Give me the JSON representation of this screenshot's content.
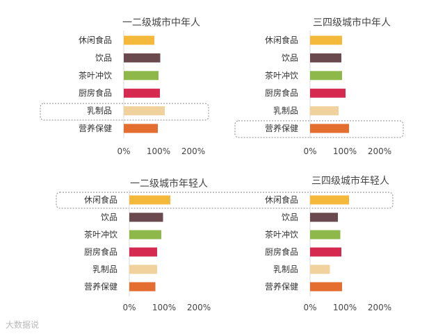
{
  "chart_data": [
    {
      "type": "bar",
      "orientation": "horizontal",
      "title": "一二级城市中年人",
      "categories": [
        "休闲食品",
        "饮品",
        "茶叶冲饮",
        "厨房食品",
        "乳制品",
        "营养保健"
      ],
      "values": [
        88,
        105,
        100,
        104,
        118,
        98
      ],
      "colors": [
        "#F4B93A",
        "#6B4A4F",
        "#8FB84A",
        "#D6294F",
        "#F2D29C",
        "#E36E2F"
      ],
      "x_ticks": [
        "0%",
        "100%",
        "200%"
      ],
      "xlim": [
        0,
        200
      ],
      "highlighted_category": "乳制品"
    },
    {
      "type": "bar",
      "orientation": "horizontal",
      "title": "三四级城市中年人",
      "categories": [
        "休闲食品",
        "饮品",
        "茶叶冲饮",
        "厨房食品",
        "乳制品",
        "营养保健"
      ],
      "values": [
        92,
        90,
        92,
        102,
        82,
        112
      ],
      "colors": [
        "#F4B93A",
        "#6B4A4F",
        "#8FB84A",
        "#D6294F",
        "#F2D29C",
        "#E36E2F"
      ],
      "x_ticks": [
        "0%",
        "100%",
        "200%"
      ],
      "xlim": [
        0,
        200
      ],
      "highlighted_category": "营养保健"
    },
    {
      "type": "bar",
      "orientation": "horizontal",
      "title": "一二级城市年轻人",
      "categories": [
        "休闲食品",
        "饮品",
        "茶叶冲饮",
        "厨房食品",
        "乳制品",
        "营养保健"
      ],
      "values": [
        118,
        97,
        92,
        80,
        80,
        75
      ],
      "colors": [
        "#F4B93A",
        "#6B4A4F",
        "#8FB84A",
        "#D6294F",
        "#F2D29C",
        "#E36E2F"
      ],
      "x_ticks": [
        "0%",
        "100%",
        "200%"
      ],
      "xlim": [
        0,
        200
      ],
      "highlighted_category": "休闲食品"
    },
    {
      "type": "bar",
      "orientation": "horizontal",
      "title": "三四级城市年轻人",
      "categories": [
        "休闲食品",
        "饮品",
        "茶叶冲饮",
        "厨房食品",
        "乳制品",
        "营养保健"
      ],
      "values": [
        112,
        80,
        87,
        90,
        57,
        92
      ],
      "colors": [
        "#F4B93A",
        "#6B4A4F",
        "#8FB84A",
        "#D6294F",
        "#F2D29C",
        "#E36E2F"
      ],
      "x_ticks": [
        "0%",
        "100%",
        "200%"
      ],
      "xlim": [
        0,
        200
      ],
      "highlighted_category": "休闲食品"
    }
  ],
  "watermark": "大数据说"
}
